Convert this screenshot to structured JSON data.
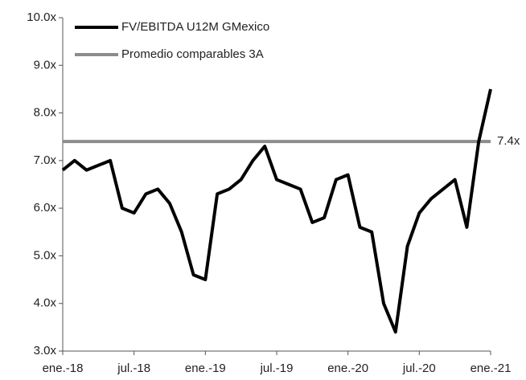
{
  "chart_data": {
    "type": "line",
    "x": [
      "2018-01",
      "2018-02",
      "2018-03",
      "2018-04",
      "2018-05",
      "2018-06",
      "2018-07",
      "2018-08",
      "2018-09",
      "2018-10",
      "2018-11",
      "2018-12",
      "2019-01",
      "2019-02",
      "2019-03",
      "2019-04",
      "2019-05",
      "2019-06",
      "2019-07",
      "2019-08",
      "2019-09",
      "2019-10",
      "2019-11",
      "2019-12",
      "2020-01",
      "2020-02",
      "2020-03",
      "2020-04",
      "2020-05",
      "2020-06",
      "2020-07",
      "2020-08",
      "2020-09",
      "2020-10",
      "2020-11",
      "2020-12",
      "2021-01"
    ],
    "series": [
      {
        "name": "FV/EBITDA U12M GMexico",
        "color": "#000000",
        "values": [
          6.8,
          7.0,
          6.8,
          6.9,
          7.0,
          6.0,
          5.9,
          6.3,
          6.4,
          6.1,
          5.5,
          4.6,
          4.5,
          6.3,
          6.4,
          6.6,
          7.0,
          7.3,
          6.6,
          6.5,
          6.4,
          5.7,
          5.8,
          6.6,
          6.7,
          5.6,
          5.5,
          4.0,
          3.4,
          5.2,
          5.9,
          6.2,
          6.4,
          6.6,
          5.6,
          7.4,
          8.5
        ]
      }
    ],
    "hline": {
      "name": "Promedio comparables 3A",
      "color": "#8c8c8c",
      "value": 7.4,
      "value_label": "7.4x"
    },
    "xlim": [
      "2018-01",
      "2021-01"
    ],
    "xticks": [
      {
        "value": "2018-01",
        "label": "ene.-18"
      },
      {
        "value": "2018-07",
        "label": "jul.-18"
      },
      {
        "value": "2019-01",
        "label": "ene.-19"
      },
      {
        "value": "2019-07",
        "label": "jul.-19"
      },
      {
        "value": "2020-01",
        "label": "ene.-20"
      },
      {
        "value": "2020-07",
        "label": "jul.-20"
      },
      {
        "value": "2021-01",
        "label": "ene.-21"
      }
    ],
    "ylim": [
      3,
      10
    ],
    "yticks": [
      {
        "value": 3,
        "label": "3.0x"
      },
      {
        "value": 4,
        "label": "4.0x"
      },
      {
        "value": 5,
        "label": "5.0x"
      },
      {
        "value": 6,
        "label": "6.0x"
      },
      {
        "value": 7,
        "label": "7.0x"
      },
      {
        "value": 8,
        "label": "8.0x"
      },
      {
        "value": 9,
        "label": "9.0x"
      },
      {
        "value": 10,
        "label": "10.0x"
      }
    ]
  }
}
